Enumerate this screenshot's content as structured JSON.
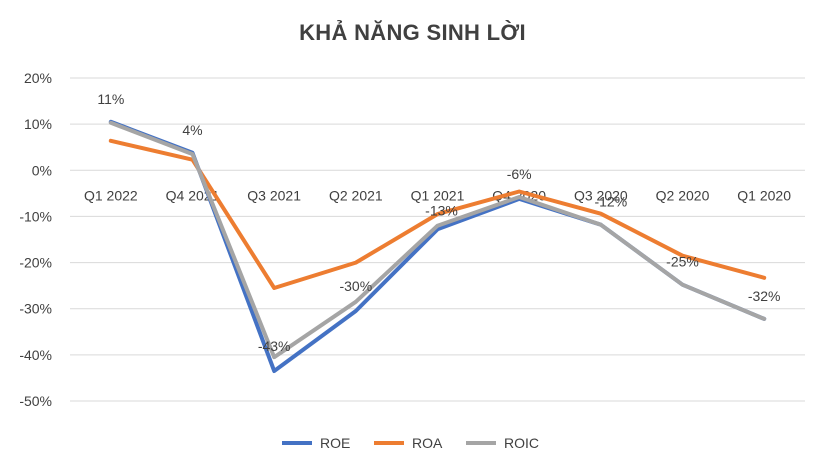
{
  "chart_data": {
    "type": "line",
    "title": "KHẢ NĂNG SINH LỜI",
    "categories": [
      "Q1 2022",
      "Q4 2021",
      "Q3 2021",
      "Q2 2021",
      "Q1 2021",
      "Q4 2020",
      "Q3 2020",
      "Q2 2020",
      "Q1 2020"
    ],
    "ylim": [
      -50,
      20
    ],
    "yticks": [
      20,
      10,
      0,
      -10,
      -20,
      -30,
      -40,
      -50
    ],
    "ytick_labels": [
      "20%",
      "10%",
      "0%",
      "-10%",
      "-20%",
      "-30%",
      "-40%",
      "-50%"
    ],
    "grid": true,
    "legend_position": "bottom",
    "series": [
      {
        "name": "ROE",
        "color": "#4472C4",
        "values": [
          10.5,
          3.8,
          -43.5,
          -30.5,
          -12.8,
          -6.2,
          -11.8,
          -24.8,
          -32.2
        ]
      },
      {
        "name": "ROA",
        "color": "#ED7D31",
        "values": [
          6.4,
          2.3,
          -25.5,
          -20.0,
          -9.5,
          -4.6,
          -9.4,
          -18.5,
          -23.3
        ]
      },
      {
        "name": "ROIC",
        "color": "#A5A5A5",
        "values": [
          10.3,
          3.5,
          -40.5,
          -28.5,
          -12.0,
          -5.8,
          -11.8,
          -24.8,
          -32.2
        ]
      }
    ],
    "data_labels": [
      "11%",
      "4%",
      "-43%",
      "-30%",
      "-13%",
      "-6%",
      "-12%",
      "-25%",
      "-32%"
    ]
  }
}
